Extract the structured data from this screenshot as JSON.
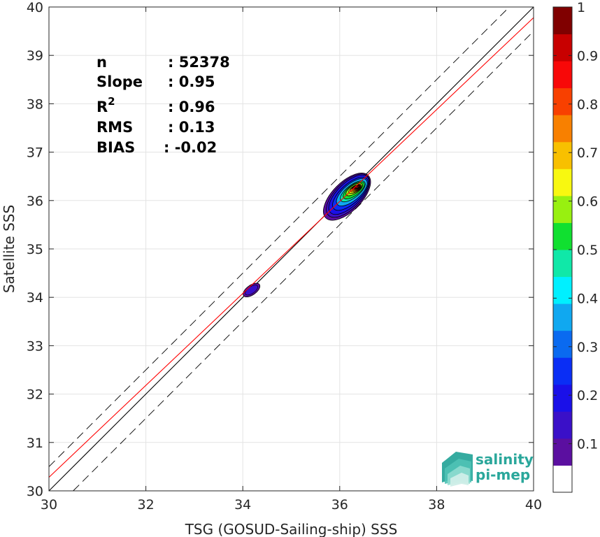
{
  "chart_data": {
    "type": "contour-density",
    "xlabel": "TSG (GOSUD-Sailing-ship) SSS",
    "ylabel": "Satellite SSS",
    "xlim": [
      30,
      40
    ],
    "ylim": [
      30,
      40
    ],
    "x_ticks": [
      30,
      32,
      34,
      36,
      38,
      40
    ],
    "y_ticks": [
      30,
      31,
      32,
      33,
      34,
      35,
      36,
      37,
      38,
      39,
      40
    ],
    "grid": true,
    "stats": [
      {
        "label": "n",
        "value": ": 52378"
      },
      {
        "label": "Slope",
        "value": ": 0.95"
      },
      {
        "label": "R",
        "sup": "2",
        "value": ": 0.96"
      },
      {
        "label": "RMS",
        "value": ": 0.13"
      },
      {
        "label": "BIAS",
        "value": ": -0.02"
      }
    ],
    "reference_lines": {
      "identity": {
        "slope": 1,
        "intercept": 0,
        "color": "#000000"
      },
      "fit": {
        "slope": 0.95,
        "intercept": 1.78,
        "color": "#ff0000"
      },
      "bounds_offset": 0.5
    },
    "density_clusters": [
      {
        "name": "main",
        "center": [
          36.0,
          36.05
        ],
        "peak": [
          36.35,
          36.28
        ],
        "peak_value": 1.0
      },
      {
        "name": "secondary",
        "center": [
          34.18,
          34.15
        ],
        "peak_value": 0.15
      }
    ],
    "colorbar": {
      "range": [
        0,
        1
      ],
      "ticks": [
        0.1,
        0.2,
        0.3,
        0.4,
        0.5,
        0.6,
        0.7,
        0.8,
        0.9,
        1
      ],
      "tick_labels": [
        "0.1",
        "0.2",
        "0.3",
        "0.4",
        "0.5",
        "0.6",
        "0.7",
        "0.8",
        "0.9",
        "1"
      ],
      "colors": [
        "#ffffff",
        "#5b0fa0",
        "#3a10c8",
        "#1a10e8",
        "#0a2ef5",
        "#0a6af0",
        "#10a8f0",
        "#00f0ff",
        "#10e8a8",
        "#10e030",
        "#98f010",
        "#f8f810",
        "#f8c000",
        "#f88000",
        "#f84000",
        "#f80808",
        "#c80000",
        "#800000"
      ]
    }
  },
  "logo": {
    "line1": "salinity",
    "line2": "pi-mep"
  }
}
